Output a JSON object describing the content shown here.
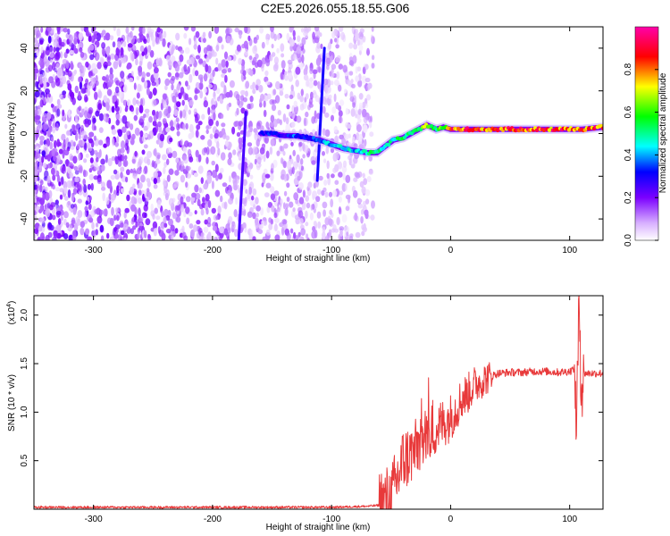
{
  "title": "C2E5.2026.055.18.55.G06",
  "colors": {
    "snr_line": "#e8393a",
    "axis": "#000000",
    "background": "#ffffff"
  },
  "chart_data": [
    {
      "type": "heatmap",
      "xlabel": "Height of straight line (km)",
      "ylabel": "Frequency (Hz)",
      "xlim": [
        -350,
        128
      ],
      "ylim": [
        -50,
        50
      ],
      "x_ticks": [
        -300,
        -200,
        -100,
        0,
        100
      ],
      "y_ticks": [
        -40,
        -20,
        0,
        20,
        40
      ],
      "x_tick_labels": [
        "-300",
        "-200",
        "-100",
        "0",
        "100"
      ],
      "y_tick_labels": [
        "-40",
        "-20",
        "0",
        "20",
        "40"
      ],
      "colorbar": {
        "label": "Normalized spectral amplitude",
        "range": [
          0,
          1
        ],
        "ticks": [
          0.0,
          0.2,
          0.4,
          0.6,
          0.8
        ],
        "tick_labels": [
          "0.0",
          "0.2",
          "0.4",
          "0.6",
          "0.8"
        ],
        "colors": [
          "#ffffff",
          "#7b00ff",
          "#0000ff",
          "#00ffff",
          "#00ff00",
          "#ffff00",
          "#ff0000",
          "#ff00aa"
        ]
      },
      "ridge": {
        "x": [
          -160,
          -150,
          -140,
          -130,
          -120,
          -110,
          -100,
          -90,
          -80,
          -70,
          -62,
          -55,
          -48,
          -40,
          -30,
          -20,
          -12,
          -6,
          0,
          20,
          40,
          60,
          80,
          100,
          110,
          128
        ],
        "y": [
          0,
          0,
          -1,
          -1,
          -2,
          -3,
          -5,
          -7,
          -8,
          -9,
          -9,
          -6,
          -3,
          -2,
          1,
          4,
          2,
          3,
          2,
          2,
          2,
          2,
          2,
          2,
          2,
          3
        ],
        "amplitude": [
          0.3,
          0.35,
          0.3,
          0.4,
          0.35,
          0.45,
          0.45,
          0.5,
          0.45,
          0.55,
          0.6,
          0.5,
          0.55,
          0.6,
          0.65,
          0.7,
          0.6,
          0.7,
          0.9,
          0.95,
          0.9,
          0.92,
          0.9,
          0.95,
          0.9,
          0.95
        ]
      },
      "streaks": [
        {
          "x": [
            -112,
            -106
          ],
          "y": [
            -22,
            40
          ],
          "amplitude": 0.3
        },
        {
          "x": [
            -178,
            -172
          ],
          "y": [
            -50,
            10
          ],
          "amplitude": 0.25
        }
      ]
    },
    {
      "type": "line",
      "xlabel": "Height of straight line (km)",
      "ylabel": "SNR (10 * v/v)",
      "multiplier_label": "(x10",
      "multiplier_exponent": "4",
      "multiplier_close": ")",
      "xlim": [
        -350,
        128
      ],
      "ylim": [
        0,
        2.2
      ],
      "x_ticks": [
        -300,
        -200,
        -100,
        0,
        100
      ],
      "y_ticks": [
        0.5,
        1.0,
        1.5,
        2.0
      ],
      "x_tick_labels": [
        "-300",
        "-200",
        "-100",
        "0",
        "100"
      ],
      "y_tick_labels": [
        "0.5",
        "1.0",
        "1.5",
        "2.0"
      ],
      "series": [
        {
          "color": "#e8393a",
          "x": [
            -350,
            -300,
            -250,
            -200,
            -150,
            -100,
            -70,
            -60,
            -50,
            -45,
            -40,
            -35,
            -30,
            -25,
            -20,
            -15,
            -10,
            -5,
            0,
            5,
            10,
            15,
            20,
            30,
            40,
            50,
            60,
            70,
            80,
            90,
            100,
            104,
            106,
            108,
            110,
            112,
            120,
            128
          ],
          "y": [
            0.02,
            0.02,
            0.02,
            0.02,
            0.02,
            0.02,
            0.03,
            0.04,
            0.1,
            0.3,
            0.5,
            0.55,
            0.6,
            0.7,
            0.75,
            0.8,
            0.85,
            0.9,
            0.95,
            1.05,
            1.15,
            1.2,
            1.28,
            1.35,
            1.4,
            1.41,
            1.41,
            1.42,
            1.42,
            1.41,
            1.42,
            1.45,
            0.9,
            2.2,
            1.3,
            1.4,
            1.4,
            1.4
          ]
        }
      ]
    }
  ]
}
